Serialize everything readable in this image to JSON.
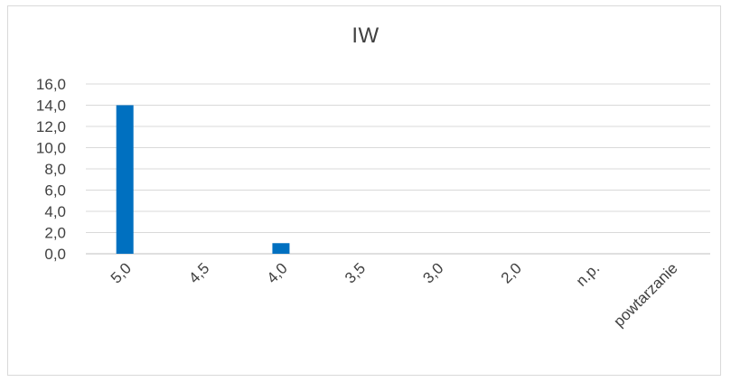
{
  "chart_data": {
    "type": "bar",
    "title": "IW",
    "categories": [
      "5,0",
      "4,5",
      "4,0",
      "3,5",
      "3,0",
      "2,0",
      "n.p.",
      "powtarzanie"
    ],
    "values": [
      14,
      0,
      1,
      0,
      0,
      0,
      0,
      0
    ],
    "ylim": [
      0,
      16
    ],
    "yticks": [
      "0,0",
      "2,0",
      "4,0",
      "6,0",
      "8,0",
      "10,0",
      "12,0",
      "14,0",
      "16,0"
    ],
    "xlabel": "",
    "ylabel": "",
    "grid": true,
    "bar_color": "#0070C0"
  }
}
